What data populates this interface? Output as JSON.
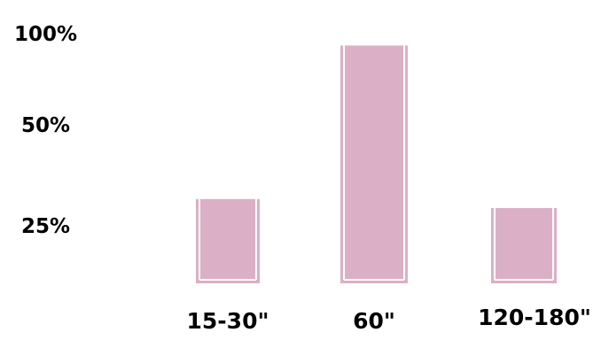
{
  "chart_data": {
    "type": "bar",
    "categories": [
      "15-30\"",
      "60\"",
      "120-180\""
    ],
    "values": [
      28,
      79,
      25
    ],
    "y_tick_labels": [
      "100%",
      "50%",
      "25%"
    ],
    "title": "",
    "xlabel": "",
    "ylabel": "",
    "grid": false,
    "legend": "none",
    "colors": {
      "bar_fill": "#dbb0c6",
      "bar_edge": "#ffffff",
      "text": "#000000",
      "background": "#ffffff"
    }
  }
}
